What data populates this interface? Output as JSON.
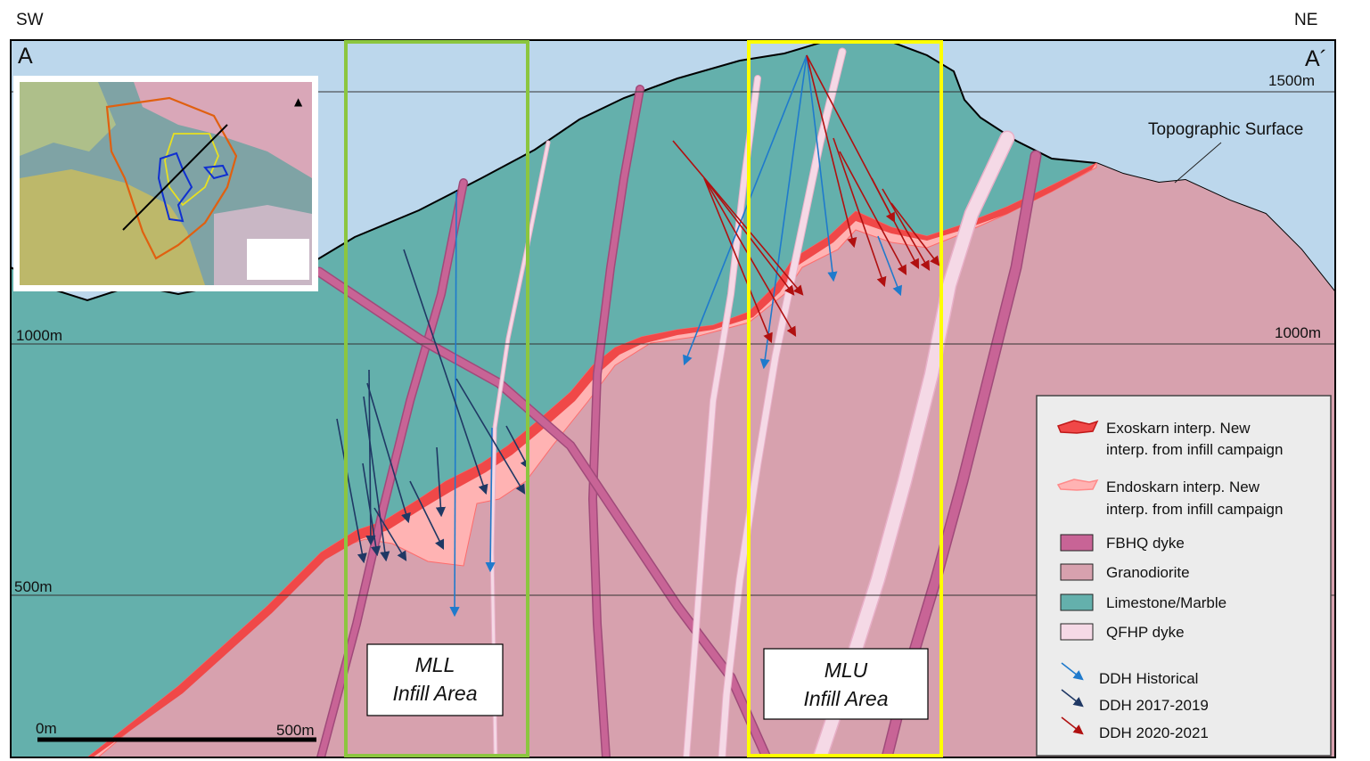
{
  "orientation": {
    "left": "SW",
    "right": "NE"
  },
  "section": {
    "start": "A",
    "end": "A´"
  },
  "elevations": [
    "1500m",
    "1000m",
    "1000m",
    "500m"
  ],
  "topo_label": "Topographic Surface",
  "infill_areas": [
    {
      "line1": "MLL",
      "line2": "Infill Area",
      "color": "#8cc63f"
    },
    {
      "line1": "MLU",
      "line2": "Infill Area",
      "color": "#ffff00"
    }
  ],
  "scale": {
    "start": "0m",
    "end": "500m"
  },
  "legend": {
    "items": [
      {
        "line1": "Exoskarn interp. New",
        "line2": "interp. from infill campaign",
        "color": "#f04848"
      },
      {
        "line1": "Endoskarn interp. New",
        "line2": "interp. from infill campaign",
        "color": "#ffb3b3"
      },
      {
        "line1": "FBHQ dyke",
        "line2": "",
        "color": "#c86496"
      },
      {
        "line1": "Granodiorite",
        "line2": "",
        "color": "#d7a1ae"
      },
      {
        "line1": "Limestone/Marble",
        "line2": "",
        "color": "#64b0ac"
      },
      {
        "line1": "QFHP dyke",
        "line2": "",
        "color": "#f5d9e6"
      }
    ],
    "drillholes": [
      {
        "label": "DDH  Historical",
        "color": "#1f7acc"
      },
      {
        "label": "DDH 2017-2019",
        "color": "#1f3864"
      },
      {
        "label": "DDH 2020-2021",
        "color": "#b01010"
      }
    ]
  },
  "colors": {
    "sky": "#bcd7ec",
    "limestone": "#64b0ac",
    "granodiorite": "#d7a1ae",
    "fbhq": "#c86496",
    "qfhp": "#f5d9e6",
    "exoskarn": "#f04848",
    "endoskarn": "#ffb3b3"
  }
}
